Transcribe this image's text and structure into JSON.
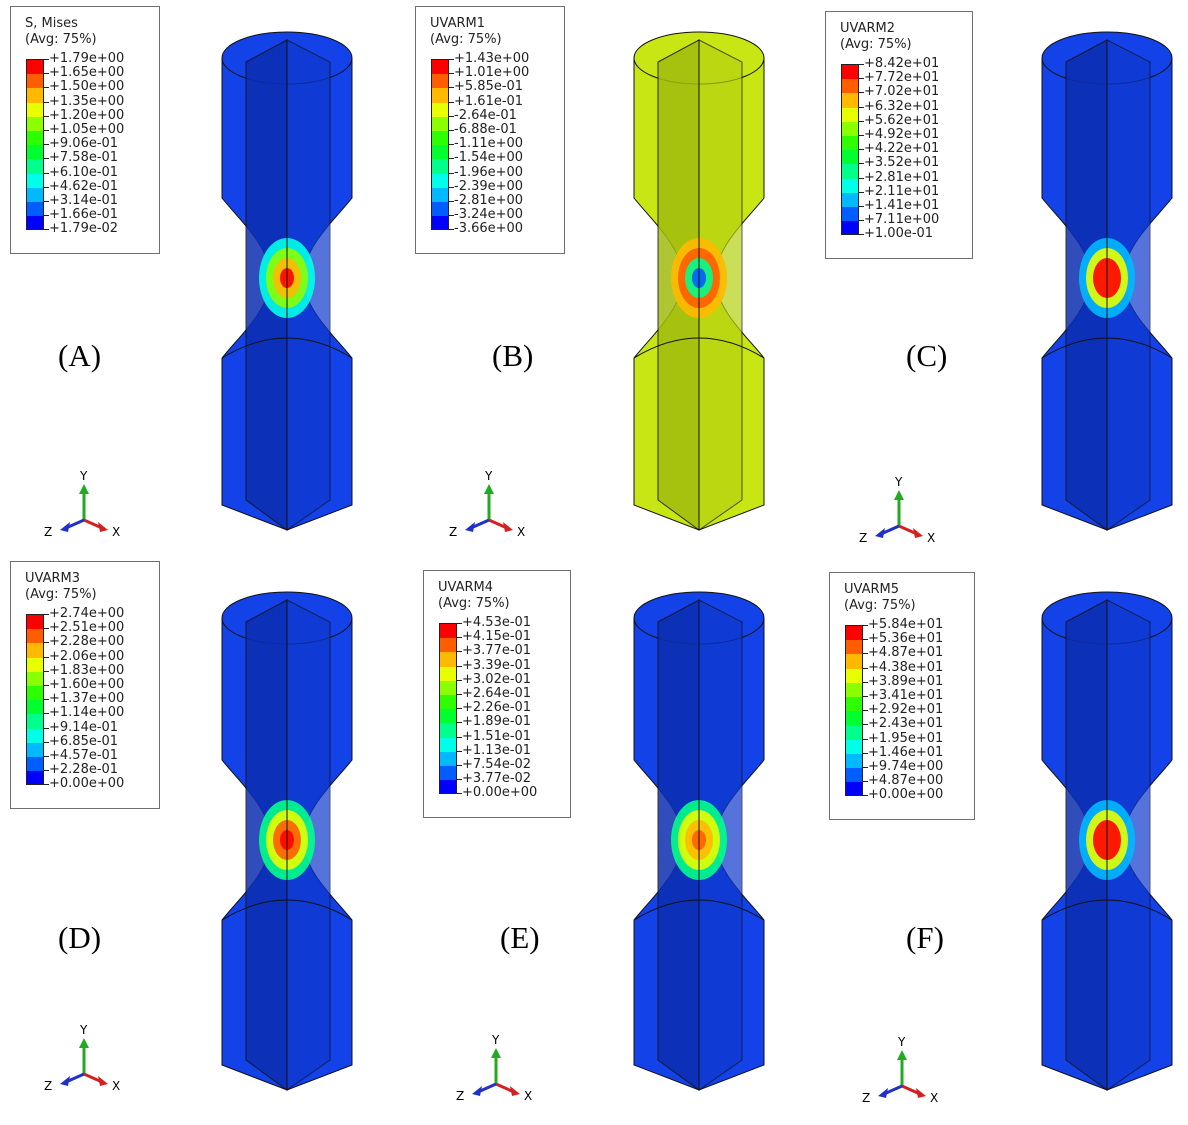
{
  "colors": {
    "contour": [
      "#0000ff",
      "#005dff",
      "#00b9ff",
      "#00ffe8",
      "#00ff8b",
      "#00ff2e",
      "#2eff00",
      "#8bff00",
      "#e8ff00",
      "#ffb900",
      "#ff5d00",
      "#ff0000"
    ],
    "specimen_base": "#1242e8",
    "specimen_base_b": "#c8e614",
    "axis_y": "#22aa22",
    "axis_x": "#d42020",
    "axis_z": "#2030c8"
  },
  "triad": {
    "y": "Y",
    "x": "X",
    "z": "Z"
  },
  "panels": [
    {
      "label": "(A)",
      "legend_title": "S, Mises",
      "legend_sub": "(Avg: 75%)",
      "values": [
        "+1.79e+00",
        "+1.65e+00",
        "+1.50e+00",
        "+1.35e+00",
        "+1.20e+00",
        "+1.05e+00",
        "+9.06e-01",
        "+7.58e-01",
        "+6.10e-01",
        "+4.62e-01",
        "+3.14e-01",
        "+1.66e-01",
        "+1.79e-02"
      ]
    },
    {
      "label": "(B)",
      "legend_title": "UVARM1",
      "legend_sub": "(Avg: 75%)",
      "values": [
        "+1.43e+00",
        "+1.01e+00",
        "+5.85e-01",
        "+1.61e-01",
        "-2.64e-01",
        "-6.88e-01",
        "-1.11e+00",
        "-1.54e+00",
        "-1.96e+00",
        "-2.39e+00",
        "-2.81e+00",
        "-3.24e+00",
        "-3.66e+00"
      ]
    },
    {
      "label": "(C)",
      "legend_title": "UVARM2",
      "legend_sub": "(Avg: 75%)",
      "values": [
        "+8.42e+01",
        "+7.72e+01",
        "+7.02e+01",
        "+6.32e+01",
        "+5.62e+01",
        "+4.92e+01",
        "+4.22e+01",
        "+3.52e+01",
        "+2.81e+01",
        "+2.11e+01",
        "+1.41e+01",
        "+7.11e+00",
        "+1.00e-01"
      ]
    },
    {
      "label": "(D)",
      "legend_title": "UVARM3",
      "legend_sub": "(Avg: 75%)",
      "values": [
        "+2.74e+00",
        "+2.51e+00",
        "+2.28e+00",
        "+2.06e+00",
        "+1.83e+00",
        "+1.60e+00",
        "+1.37e+00",
        "+1.14e+00",
        "+9.14e-01",
        "+6.85e-01",
        "+4.57e-01",
        "+2.28e-01",
        "+0.00e+00"
      ]
    },
    {
      "label": "(E)",
      "legend_title": "UVARM4",
      "legend_sub": "(Avg: 75%)",
      "values": [
        "+4.53e-01",
        "+4.15e-01",
        "+3.77e-01",
        "+3.39e-01",
        "+3.02e-01",
        "+2.64e-01",
        "+2.26e-01",
        "+1.89e-01",
        "+1.51e-01",
        "+1.13e-01",
        "+7.54e-02",
        "+3.77e-02",
        "+0.00e+00"
      ]
    },
    {
      "label": "(F)",
      "legend_title": "UVARM5",
      "legend_sub": "(Avg: 75%)",
      "values": [
        "+5.84e+01",
        "+5.36e+01",
        "+4.87e+01",
        "+4.38e+01",
        "+3.89e+01",
        "+3.41e+01",
        "+2.92e+01",
        "+2.43e+01",
        "+1.95e+01",
        "+1.46e+01",
        "+9.74e+00",
        "+4.87e+00",
        "+0.00e+00"
      ]
    }
  ]
}
